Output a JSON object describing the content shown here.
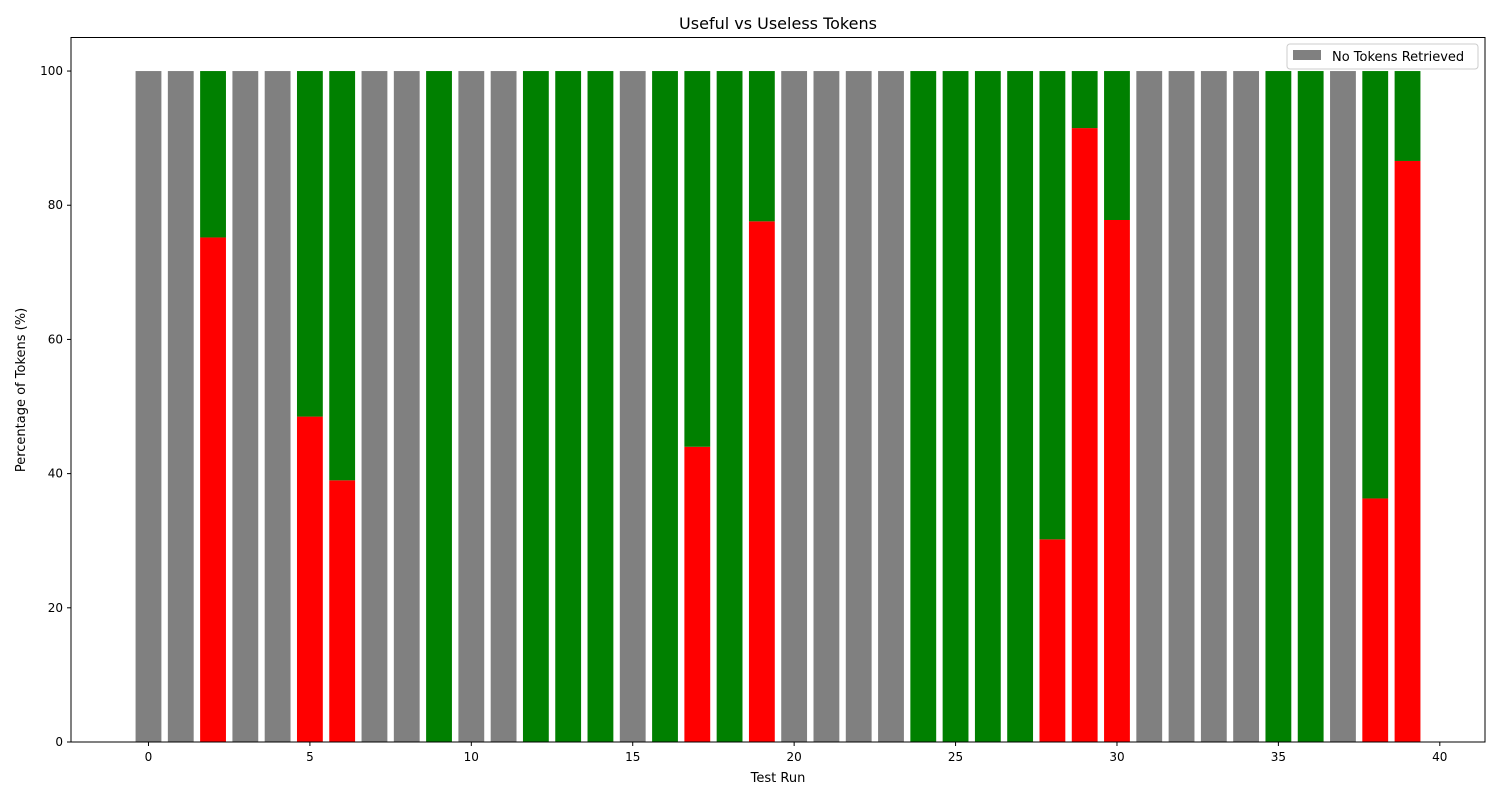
{
  "chart_data": {
    "type": "bar",
    "stacked": true,
    "title": "Useful vs Useless Tokens",
    "xlabel": "Test Run",
    "ylabel": "Percentage of Tokens (%)",
    "xlim": [
      -2.4,
      41.4
    ],
    "ylim": [
      0,
      105
    ],
    "xticks": [
      0,
      5,
      10,
      15,
      20,
      25,
      30,
      35,
      40
    ],
    "yticks": [
      0,
      20,
      40,
      60,
      80,
      100
    ],
    "legend": {
      "entries": [
        "No Tokens Retrieved"
      ],
      "placement": "top-right"
    },
    "grid": false,
    "colors": {
      "useless": "#ff0000",
      "useful": "#008000",
      "none": "#808080"
    },
    "x": [
      0,
      1,
      2,
      3,
      4,
      5,
      6,
      7,
      8,
      9,
      10,
      11,
      12,
      13,
      14,
      15,
      16,
      17,
      18,
      19,
      20,
      21,
      22,
      23,
      24,
      25,
      26,
      27,
      28,
      29,
      30,
      31,
      32,
      33,
      34,
      35,
      36,
      37,
      38,
      39
    ],
    "series": [
      {
        "name": "No Tokens Retrieved",
        "key": "none",
        "values": [
          100,
          100,
          0,
          100,
          100,
          0,
          0,
          100,
          100,
          0,
          100,
          100,
          0,
          0,
          0,
          100,
          0,
          0,
          0,
          0,
          100,
          100,
          100,
          100,
          0,
          0,
          0,
          0,
          0,
          0,
          0,
          100,
          100,
          100,
          100,
          0,
          0,
          100,
          0,
          0
        ]
      },
      {
        "key": "useless",
        "values": [
          0,
          0,
          75.2,
          0,
          0,
          48.5,
          39,
          0,
          0,
          0,
          0,
          0,
          0,
          0,
          0,
          0,
          0,
          44,
          0,
          77.6,
          0,
          0,
          0,
          0,
          0,
          0,
          0,
          0,
          30.2,
          91.5,
          77.8,
          0,
          0,
          0,
          0,
          0,
          0,
          0,
          36.3,
          86.6
        ]
      },
      {
        "key": "useful",
        "values": [
          0,
          0,
          24.8,
          0,
          0,
          51.5,
          61,
          0,
          0,
          100,
          0,
          0,
          100,
          100,
          100,
          0,
          100,
          56,
          100,
          22.4,
          0,
          0,
          0,
          0,
          100,
          100,
          100,
          100,
          69.8,
          8.5,
          22.2,
          0,
          0,
          0,
          0,
          100,
          100,
          0,
          63.7,
          13.4
        ]
      }
    ]
  }
}
